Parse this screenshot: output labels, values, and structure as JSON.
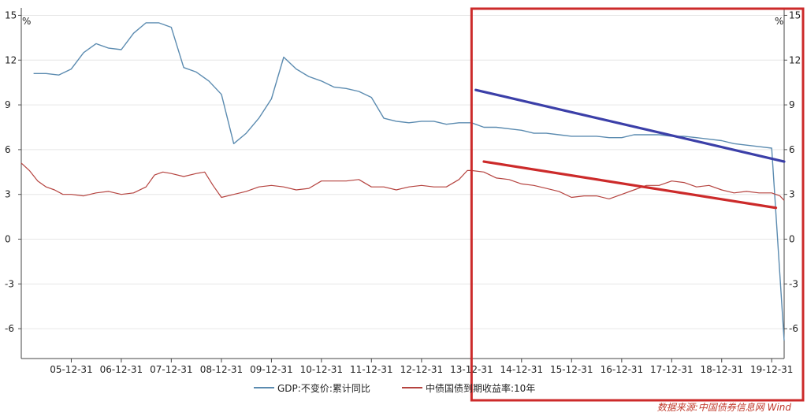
{
  "chart_data": {
    "type": "line",
    "y_unit_left": "%",
    "y_unit_right": "%",
    "ylim": [
      -8,
      15.5
    ],
    "yticks": [
      15,
      12,
      9,
      6,
      3,
      0,
      -3,
      -6
    ],
    "ytick_labels_left": [
      "15",
      "12",
      "9",
      "6",
      "3",
      "0",
      "-3",
      "-6"
    ],
    "ytick_labels_right": [
      "15",
      "12",
      "9",
      "6",
      "3",
      "0",
      "-3",
      "-6"
    ],
    "x_range": [
      "2004-12-31",
      "2020-03-31"
    ],
    "x_tick_dates": [
      "2005-12-31",
      "2006-12-31",
      "2007-12-31",
      "2008-12-31",
      "2009-12-31",
      "2010-12-31",
      "2011-12-31",
      "2012-12-31",
      "2013-12-31",
      "2014-12-31",
      "2015-12-31",
      "2016-12-31",
      "2017-12-31",
      "2018-12-31",
      "2019-12-31"
    ],
    "x_tick_labels": [
      "05-12-31",
      "06-12-31",
      "07-12-31",
      "08-12-31",
      "09-12-31",
      "10-12-31",
      "11-12-31",
      "12-12-31",
      "13-12-31",
      "14-12-31",
      "15-12-31",
      "16-12-31",
      "17-12-31",
      "18-12-31",
      "19-12-31"
    ],
    "grid": "horizontal",
    "legend_position": "bottom",
    "series": [
      {
        "name": "GDP:不变价:累计同比",
        "color": "#5b8bb0",
        "points": [
          [
            "2005-03-31",
            11.1
          ],
          [
            "2005-06-30",
            11.1
          ],
          [
            "2005-09-30",
            11.0
          ],
          [
            "2005-12-31",
            11.4
          ],
          [
            "2006-03-31",
            12.5
          ],
          [
            "2006-06-30",
            13.1
          ],
          [
            "2006-09-30",
            12.8
          ],
          [
            "2006-12-31",
            12.7
          ],
          [
            "2007-03-31",
            13.8
          ],
          [
            "2007-06-30",
            14.5
          ],
          [
            "2007-09-30",
            14.5
          ],
          [
            "2007-12-31",
            14.2
          ],
          [
            "2008-03-31",
            11.5
          ],
          [
            "2008-06-30",
            11.2
          ],
          [
            "2008-09-30",
            10.6
          ],
          [
            "2008-12-31",
            9.7
          ],
          [
            "2009-03-31",
            6.4
          ],
          [
            "2009-06-30",
            7.1
          ],
          [
            "2009-09-30",
            8.1
          ],
          [
            "2009-12-31",
            9.4
          ],
          [
            "2010-03-31",
            12.2
          ],
          [
            "2010-06-30",
            11.4
          ],
          [
            "2010-09-30",
            10.9
          ],
          [
            "2010-12-31",
            10.6
          ],
          [
            "2011-03-31",
            10.2
          ],
          [
            "2011-06-30",
            10.1
          ],
          [
            "2011-09-30",
            9.9
          ],
          [
            "2011-12-31",
            9.5
          ],
          [
            "2012-03-31",
            8.1
          ],
          [
            "2012-06-30",
            7.9
          ],
          [
            "2012-09-30",
            7.8
          ],
          [
            "2012-12-31",
            7.9
          ],
          [
            "2013-03-31",
            7.9
          ],
          [
            "2013-06-30",
            7.7
          ],
          [
            "2013-09-30",
            7.8
          ],
          [
            "2013-12-31",
            7.8
          ],
          [
            "2014-03-31",
            7.5
          ],
          [
            "2014-06-30",
            7.5
          ],
          [
            "2014-09-30",
            7.4
          ],
          [
            "2014-12-31",
            7.3
          ],
          [
            "2015-03-31",
            7.1
          ],
          [
            "2015-06-30",
            7.1
          ],
          [
            "2015-09-30",
            7.0
          ],
          [
            "2015-12-31",
            6.9
          ],
          [
            "2016-03-31",
            6.9
          ],
          [
            "2016-06-30",
            6.9
          ],
          [
            "2016-09-30",
            6.8
          ],
          [
            "2016-12-31",
            6.8
          ],
          [
            "2017-03-31",
            7.0
          ],
          [
            "2017-06-30",
            7.0
          ],
          [
            "2017-09-30",
            7.0
          ],
          [
            "2017-12-31",
            6.9
          ],
          [
            "2018-03-31",
            6.9
          ],
          [
            "2018-06-30",
            6.8
          ],
          [
            "2018-09-30",
            6.7
          ],
          [
            "2018-12-31",
            6.6
          ],
          [
            "2019-03-31",
            6.4
          ],
          [
            "2019-06-30",
            6.3
          ],
          [
            "2019-09-30",
            6.2
          ],
          [
            "2019-12-31",
            6.1
          ],
          [
            "2020-03-31",
            -6.8
          ]
        ]
      },
      {
        "name": "中债国债到期收益率:10年",
        "color": "#b5433f",
        "points": [
          [
            "2004-12-31",
            5.1
          ],
          [
            "2005-02-28",
            4.6
          ],
          [
            "2005-04-30",
            3.9
          ],
          [
            "2005-06-30",
            3.5
          ],
          [
            "2005-08-31",
            3.3
          ],
          [
            "2005-10-31",
            3.0
          ],
          [
            "2005-12-31",
            3.0
          ],
          [
            "2006-03-31",
            2.9
          ],
          [
            "2006-06-30",
            3.1
          ],
          [
            "2006-09-30",
            3.2
          ],
          [
            "2006-12-31",
            3.0
          ],
          [
            "2007-03-31",
            3.1
          ],
          [
            "2007-06-30",
            3.5
          ],
          [
            "2007-08-31",
            4.3
          ],
          [
            "2007-10-31",
            4.5
          ],
          [
            "2007-12-31",
            4.4
          ],
          [
            "2008-03-31",
            4.2
          ],
          [
            "2008-06-30",
            4.4
          ],
          [
            "2008-08-31",
            4.5
          ],
          [
            "2008-10-31",
            3.6
          ],
          [
            "2008-12-31",
            2.8
          ],
          [
            "2009-03-31",
            3.0
          ],
          [
            "2009-06-30",
            3.2
          ],
          [
            "2009-09-30",
            3.5
          ],
          [
            "2009-12-31",
            3.6
          ],
          [
            "2010-03-31",
            3.5
          ],
          [
            "2010-06-30",
            3.3
          ],
          [
            "2010-09-30",
            3.4
          ],
          [
            "2010-12-31",
            3.9
          ],
          [
            "2011-03-31",
            3.9
          ],
          [
            "2011-06-30",
            3.9
          ],
          [
            "2011-09-30",
            4.0
          ],
          [
            "2011-12-31",
            3.5
          ],
          [
            "2012-03-31",
            3.5
          ],
          [
            "2012-06-30",
            3.3
          ],
          [
            "2012-09-30",
            3.5
          ],
          [
            "2012-12-31",
            3.6
          ],
          [
            "2013-03-31",
            3.5
          ],
          [
            "2013-06-30",
            3.5
          ],
          [
            "2013-09-30",
            4.0
          ],
          [
            "2013-11-30",
            4.6
          ],
          [
            "2013-12-31",
            4.6
          ],
          [
            "2014-03-31",
            4.5
          ],
          [
            "2014-06-30",
            4.1
          ],
          [
            "2014-09-30",
            4.0
          ],
          [
            "2014-12-31",
            3.7
          ],
          [
            "2015-03-31",
            3.6
          ],
          [
            "2015-06-30",
            3.4
          ],
          [
            "2015-09-30",
            3.2
          ],
          [
            "2015-12-31",
            2.8
          ],
          [
            "2016-03-31",
            2.9
          ],
          [
            "2016-06-30",
            2.9
          ],
          [
            "2016-09-30",
            2.7
          ],
          [
            "2016-12-31",
            3.0
          ],
          [
            "2017-03-31",
            3.3
          ],
          [
            "2017-06-30",
            3.6
          ],
          [
            "2017-09-30",
            3.6
          ],
          [
            "2017-12-31",
            3.9
          ],
          [
            "2018-03-31",
            3.8
          ],
          [
            "2018-06-30",
            3.5
          ],
          [
            "2018-09-30",
            3.6
          ],
          [
            "2018-12-31",
            3.3
          ],
          [
            "2019-03-31",
            3.1
          ],
          [
            "2019-06-30",
            3.2
          ],
          [
            "2019-09-30",
            3.1
          ],
          [
            "2019-12-31",
            3.1
          ],
          [
            "2020-02-29",
            2.9
          ],
          [
            "2020-03-31",
            2.6
          ]
        ]
      }
    ],
    "annotations": [
      {
        "type": "trend-line",
        "color": "#3b3fa8",
        "from": [
          "2014-01-31",
          10.0
        ],
        "to": [
          "2020-03-31",
          5.2
        ]
      },
      {
        "type": "trend-line",
        "color": "#cc2a2a",
        "from": [
          "2014-03-31",
          5.2
        ],
        "to": [
          "2020-01-31",
          2.1
        ]
      },
      {
        "type": "highlight-box",
        "color": "#cc2a2a",
        "from": [
          "2013-12-31",
          15.5
        ],
        "to": [
          "2020-03-31",
          -8.0
        ]
      }
    ]
  },
  "source": "数据来源:中国债券信息网 Wind"
}
